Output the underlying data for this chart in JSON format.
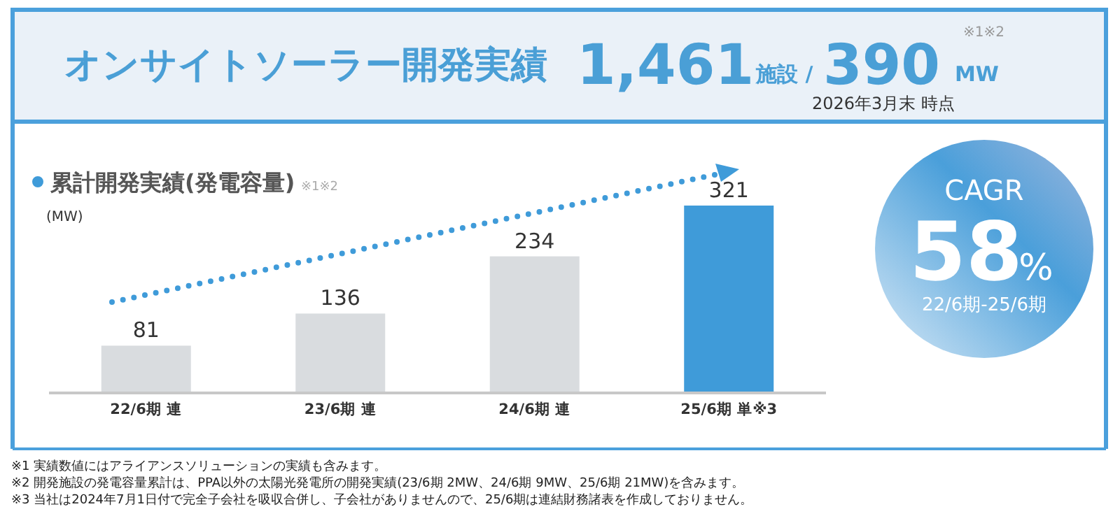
{
  "chart_data": {
    "type": "bar",
    "title": "累計開発実績(発電容量)",
    "ylabel": "(MW)",
    "categories": [
      "22/6期 連",
      "23/6期 連",
      "24/6期 連",
      "25/6期 単※3"
    ],
    "values": [
      81,
      136,
      234,
      321
    ],
    "colors": [
      "#d9dcdf",
      "#d9dcdf",
      "#d9dcdf",
      "#3f9bd9"
    ],
    "data_labels": true,
    "annotations": [
      "オンサイトソーラー開発実績",
      "1,461",
      "施設 /",
      "390",
      "MW",
      "※1※2",
      "2026年3月末 時点",
      "※1※2",
      "CAGR",
      "58",
      "%",
      "22/6期-25/6期",
      "※1 実績数値にはアライアンスソリューションの実績も含みます。",
      "※2 開発施設の発電容量累計は、PPA以外の太陽光発電所の開発実績(23/6期 2MW、24/6期 9MW、25/6期 21MW)を含みます。",
      "※3 当社は2024年7月1日付で完全子会社を吸収合併し、子会社がありませんので、25/6期は連結財務諸表を作成しておりません。"
    ]
  }
}
